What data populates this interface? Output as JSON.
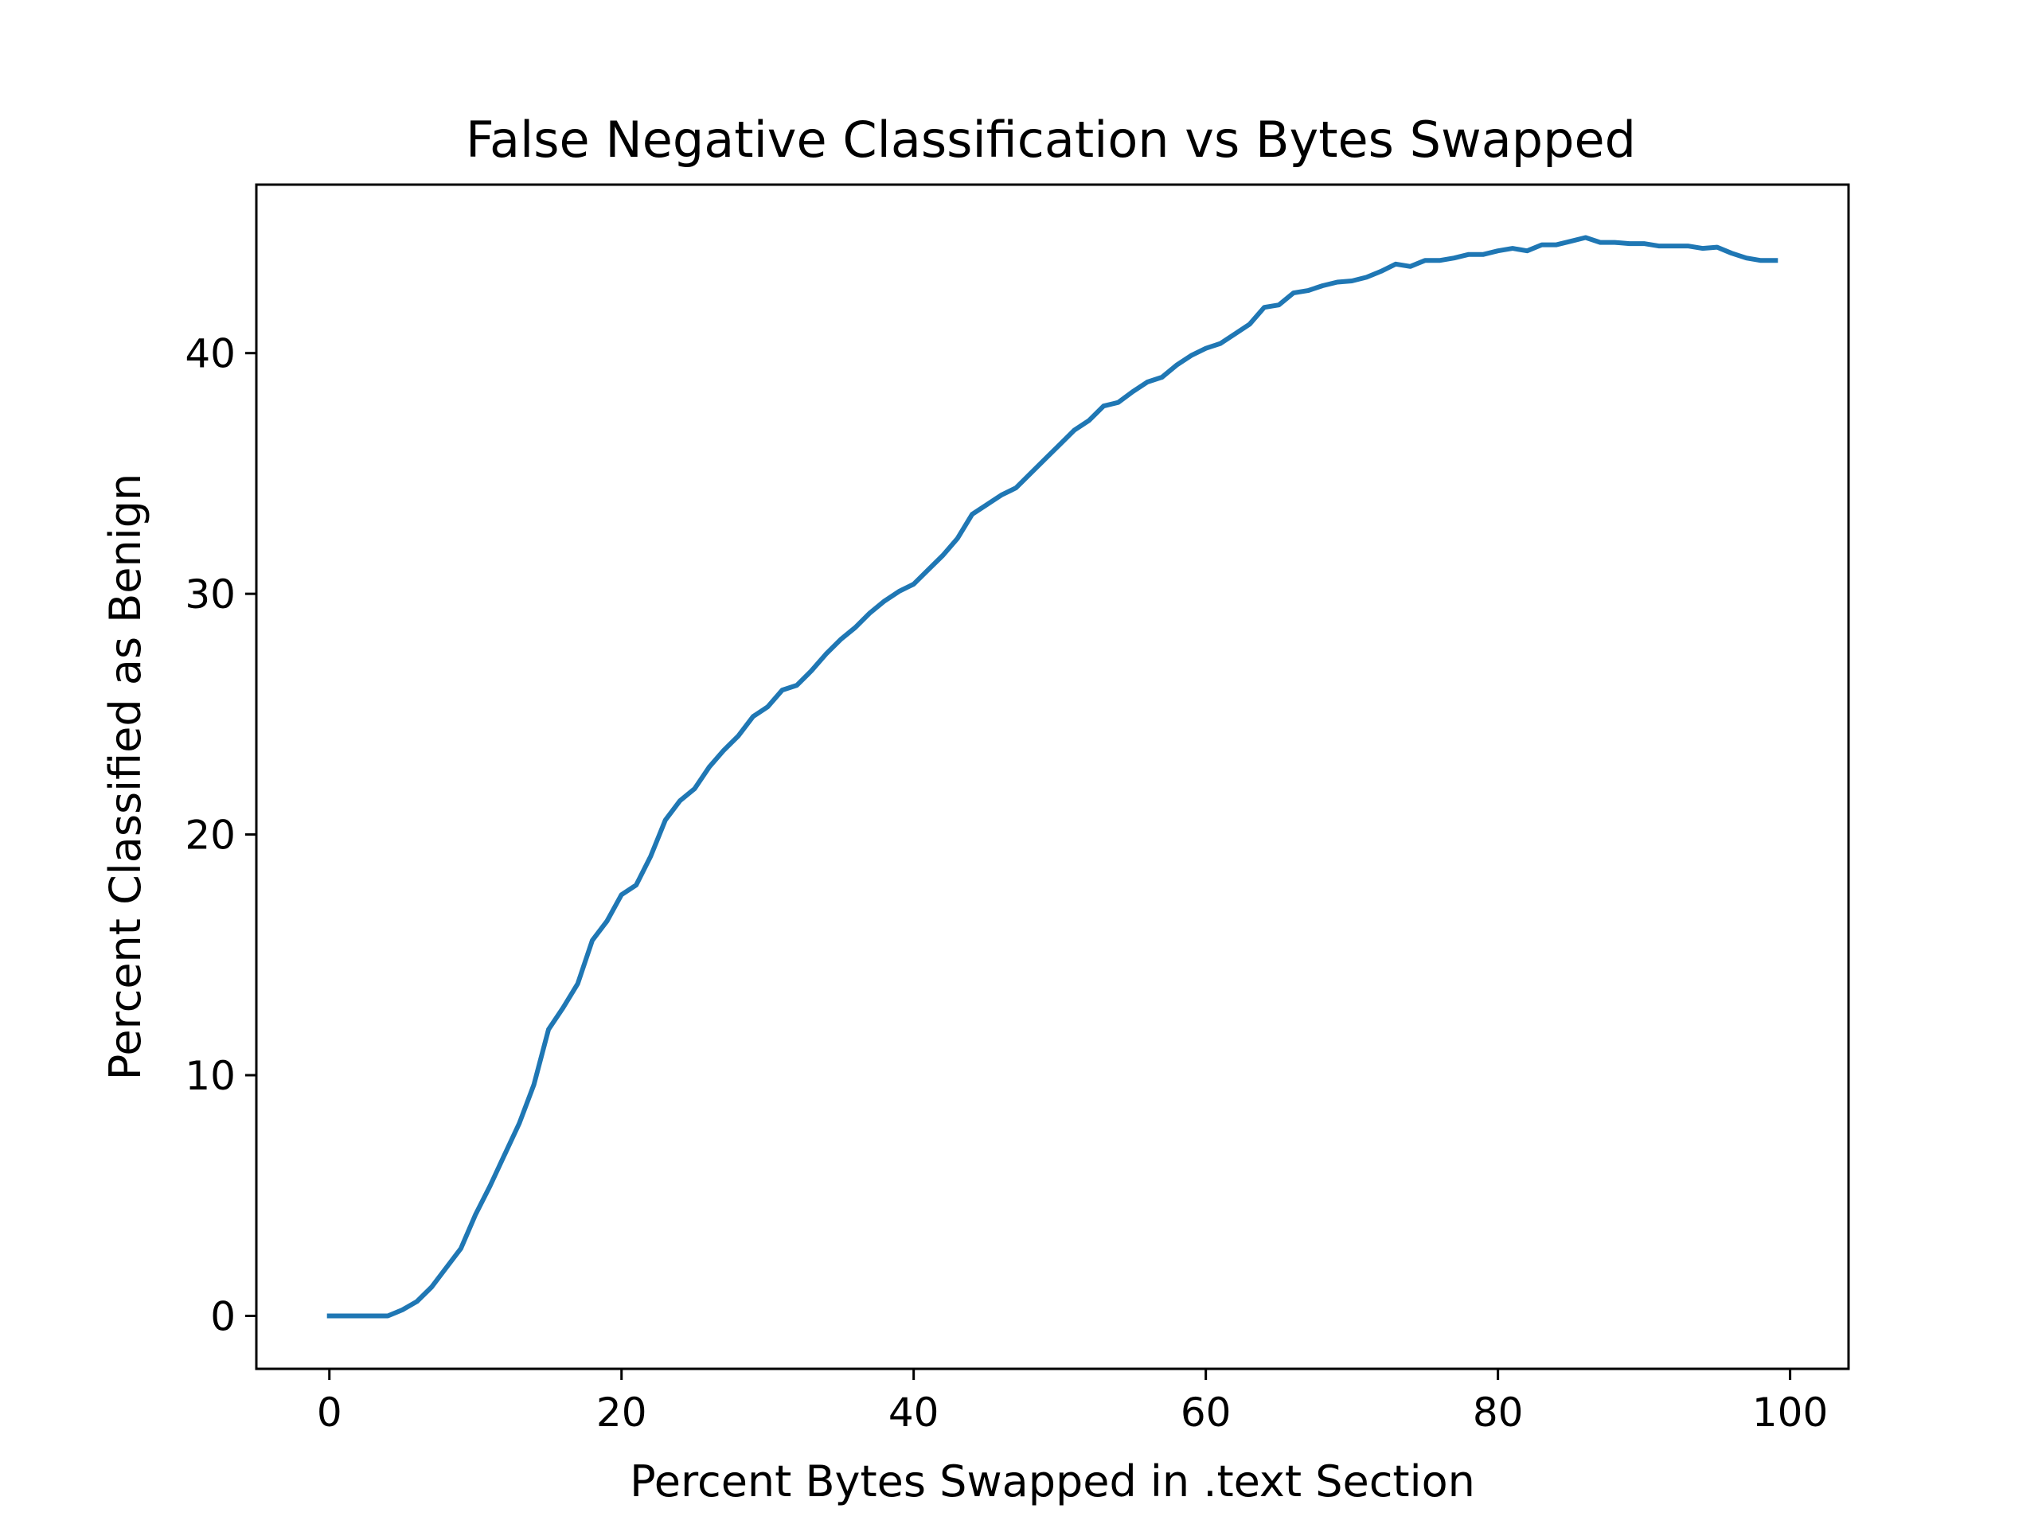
{
  "chart_data": {
    "type": "line",
    "title": "False Negative Classification vs Bytes Swapped",
    "xlabel": "Percent Bytes Swapped in .text Section",
    "ylabel": "Percent Classified as Benign",
    "xlim": [
      -5,
      104
    ],
    "ylim": [
      -2.2,
      47
    ],
    "xticks": [
      0,
      20,
      40,
      60,
      80,
      100
    ],
    "yticks": [
      0,
      10,
      20,
      30,
      40
    ],
    "grid": false,
    "legend": null,
    "line_color": "#1f77b4",
    "series": [
      {
        "name": "false negatives",
        "x": [
          0,
          1,
          2,
          3,
          4,
          5,
          6,
          7,
          8,
          9,
          10,
          11,
          12,
          13,
          14,
          15,
          16,
          17,
          18,
          19,
          20,
          21,
          22,
          23,
          24,
          25,
          26,
          27,
          28,
          29,
          30,
          31,
          32,
          33,
          34,
          35,
          36,
          37,
          38,
          39,
          40,
          41,
          42,
          43,
          44,
          45,
          46,
          47,
          48,
          49,
          50,
          51,
          52,
          53,
          54,
          55,
          56,
          57,
          58,
          59,
          60,
          61,
          62,
          63,
          64,
          65,
          66,
          67,
          68,
          69,
          70,
          71,
          72,
          73,
          74,
          75,
          76,
          77,
          78,
          79,
          80,
          81,
          82,
          83,
          84,
          85,
          86,
          87,
          88,
          89,
          90,
          91,
          92,
          93,
          94,
          95,
          96,
          97,
          98,
          99
        ],
        "values": [
          0,
          0,
          0,
          0,
          0,
          0.25,
          0.6,
          1.2,
          2.0,
          2.8,
          4.2,
          5.4,
          6.7,
          8.0,
          9.6,
          11.9,
          12.8,
          13.8,
          15.6,
          16.4,
          17.5,
          17.9,
          19.1,
          20.6,
          21.4,
          21.9,
          22.8,
          23.5,
          24.1,
          24.9,
          25.3,
          26.0,
          26.2,
          26.8,
          27.5,
          28.1,
          28.6,
          29.2,
          29.7,
          30.1,
          30.4,
          31.0,
          31.6,
          32.3,
          33.3,
          33.7,
          34.1,
          34.4,
          35.0,
          35.6,
          36.2,
          36.8,
          37.2,
          37.8,
          37.95,
          38.4,
          38.8,
          39.0,
          39.5,
          39.9,
          40.2,
          40.4,
          40.8,
          41.2,
          41.9,
          42.0,
          42.5,
          42.6,
          42.8,
          42.95,
          43.0,
          43.15,
          43.4,
          43.7,
          43.6,
          43.85,
          43.85,
          43.95,
          44.1,
          44.1,
          44.25,
          44.35,
          44.25,
          44.5,
          44.5,
          44.65,
          44.8,
          44.6,
          44.6,
          44.55,
          44.55,
          44.45,
          44.45,
          44.45,
          44.35,
          44.4,
          44.15,
          43.95,
          43.85,
          43.85
        ]
      }
    ]
  }
}
